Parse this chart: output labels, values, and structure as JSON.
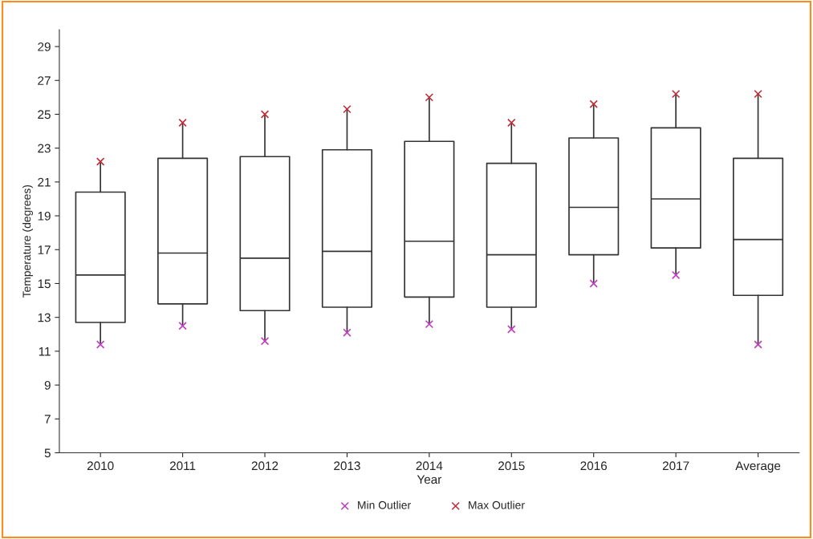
{
  "chart_data": {
    "type": "box",
    "xlabel": "Year",
    "ylabel": "Temperature (degrees)",
    "categories": [
      "2010",
      "2011",
      "2012",
      "2013",
      "2014",
      "2015",
      "2016",
      "2017",
      "Average"
    ],
    "boxes": [
      {
        "low": 11.4,
        "q1": 12.7,
        "median": 15.5,
        "q3": 20.4,
        "high": 22.2
      },
      {
        "low": 12.5,
        "q1": 13.8,
        "median": 16.8,
        "q3": 22.4,
        "high": 24.5
      },
      {
        "low": 11.6,
        "q1": 13.4,
        "median": 16.5,
        "q3": 22.5,
        "high": 25.0
      },
      {
        "low": 12.1,
        "q1": 13.6,
        "median": 16.9,
        "q3": 22.9,
        "high": 25.3
      },
      {
        "low": 12.6,
        "q1": 14.2,
        "median": 17.5,
        "q3": 23.4,
        "high": 26.0
      },
      {
        "low": 12.3,
        "q1": 13.6,
        "median": 16.7,
        "q3": 22.1,
        "high": 24.5
      },
      {
        "low": 15.0,
        "q1": 16.7,
        "median": 19.5,
        "q3": 23.6,
        "high": 25.6
      },
      {
        "low": 15.5,
        "q1": 17.1,
        "median": 20.0,
        "q3": 24.2,
        "high": 26.2
      },
      {
        "low": 11.4,
        "q1": 14.3,
        "median": 17.6,
        "q3": 22.4,
        "high": 26.2
      }
    ],
    "series": [
      {
        "type": "scatter",
        "name": "Min Outlier",
        "color": "#c040c0",
        "values": [
          11.4,
          12.5,
          11.6,
          12.1,
          12.6,
          12.3,
          15.0,
          15.5,
          11.4
        ]
      },
      {
        "type": "scatter",
        "name": "Max Outlier",
        "color": "#c0303a",
        "values": [
          22.2,
          24.5,
          25.0,
          25.3,
          26.0,
          24.5,
          25.6,
          26.2,
          26.2
        ]
      }
    ],
    "ylim": [
      5,
      30
    ],
    "yticks": [
      5,
      7,
      9,
      11,
      13,
      15,
      17,
      19,
      21,
      23,
      25,
      27,
      29
    ],
    "marker": "cross",
    "legend": "bottom",
    "grid": false
  }
}
